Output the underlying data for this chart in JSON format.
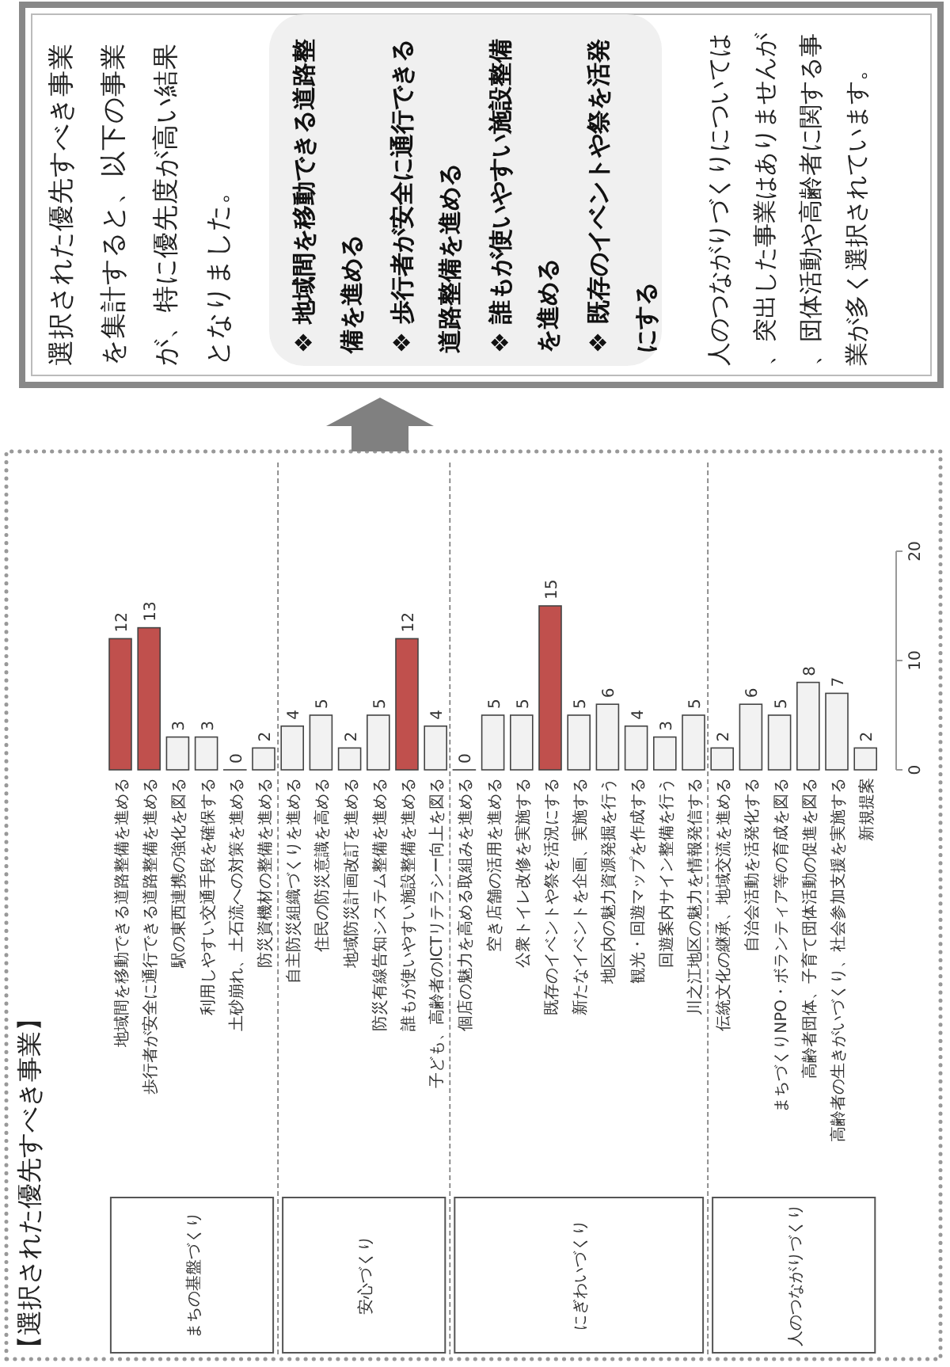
{
  "chart_data": {
    "type": "bar",
    "title": "【選択された優先すべき事業】",
    "categories": [
      "地域間を移動できる道路整備を進める",
      "歩行者が安全に通行できる道路整備を進める",
      "駅の東西連携の強化を図る",
      "利用しやすい交通手段を確保する",
      "土砂崩れ、土石流への対策を進める",
      "防災資機材の整備を進める",
      "自主防災組織づくりを進める",
      "住民の防災意識を高める",
      "地域防災計画改訂を進める",
      "防災有線告知システム整備を進める",
      "誰もが使いやすい施設整備を進める",
      "子ども、高齢者のICTリテラシー向上を図る",
      "個店の魅力を高める取組みを進める",
      "空き店舗の活用を進める",
      "公衆トイレ改修を実施する",
      "既存のイベントや祭を活況にする",
      "新たなイベントを企画、実施する",
      "地区内の魅力資源発掘を行う",
      "観光・回遊マップを作成する",
      "回遊案内サイン整備を行う",
      "川之江地区の魅力を情報発信する",
      "伝統文化の継承、地域交流を進める",
      "自治会活動を活発化する",
      "まちづくりNPO・ボランティア等の育成を図る",
      "高齢者団体、子育て団体活動の促進を図る",
      "高齢者の生きがいづくり、社会参加支援を実施する",
      "新規提案"
    ],
    "values": [
      12,
      13,
      3,
      3,
      0,
      2,
      4,
      5,
      2,
      5,
      12,
      4,
      0,
      5,
      5,
      15,
      5,
      6,
      4,
      3,
      5,
      2,
      6,
      5,
      8,
      7,
      2
    ],
    "colors": [
      "#c0504d",
      "#c0504d",
      "#f2f2f2",
      "#f2f2f2",
      "#f2f2f2",
      "#f2f2f2",
      "#f2f2f2",
      "#f2f2f2",
      "#f2f2f2",
      "#f2f2f2",
      "#c0504d",
      "#f2f2f2",
      "#f2f2f2",
      "#f2f2f2",
      "#f2f2f2",
      "#c0504d",
      "#f2f2f2",
      "#f2f2f2",
      "#f2f2f2",
      "#f2f2f2",
      "#f2f2f2",
      "#f2f2f2",
      "#f2f2f2",
      "#f2f2f2",
      "#f2f2f2",
      "#f2f2f2",
      "#f2f2f2"
    ],
    "ylim": [
      0,
      20
    ],
    "yticks": [
      0,
      10,
      20
    ],
    "data_labels": true,
    "annotations": [
      "まちの基盤づくり",
      "安心づくり",
      "にぎわいづくり",
      "人のつながりづくり",
      "選択された優先すべき事業を集計すると、以下の事業が、特に優先度が高い結果となりました。",
      "❖ 地域間を移動できる道路整備を進める",
      "❖ 歩行者が安全に通行できる道路整備を進める",
      "❖ 誰もが使いやすい施設整備を進める",
      "❖ 既存のイベントや祭を活発にする",
      "人のつながりづくりについては、突出した事業はありませんが、団体活動や高齢者に関する事業が多く選択されています。"
    ]
  }
}
